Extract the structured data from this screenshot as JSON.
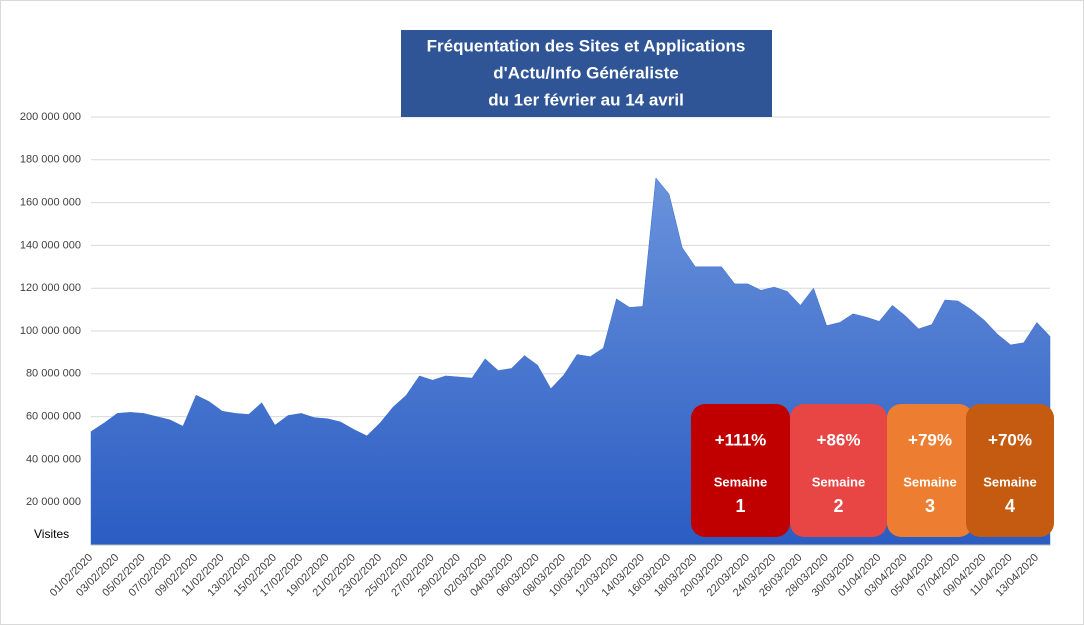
{
  "chart_data": {
    "type": "area",
    "title": [
      "Fréquentation des Sites et Applications",
      "d'Actu/Info Généraliste",
      "du 1er février au 14 avril"
    ],
    "y_label": "Visites",
    "categories": [
      "01/02/2020",
      null,
      "03/02/2020",
      null,
      "05/02/2020",
      null,
      "07/02/2020",
      null,
      "09/02/2020",
      null,
      "11/02/2020",
      null,
      "13/02/2020",
      null,
      "15/02/2020",
      null,
      "17/02/2020",
      null,
      "19/02/2020",
      null,
      "21/02/2020",
      null,
      "23/02/2020",
      null,
      "25/02/2020",
      null,
      "27/02/2020",
      null,
      "29/02/2020",
      null,
      "02/03/2020",
      null,
      "04/03/2020",
      null,
      "06/03/2020",
      null,
      "08/03/2020",
      null,
      "10/03/2020",
      null,
      "12/03/2020",
      null,
      "14/03/2020",
      null,
      "16/03/2020",
      null,
      "18/03/2020",
      null,
      "20/03/2020",
      null,
      "22/03/2020",
      null,
      "24/03/2020",
      null,
      "26/03/2020",
      null,
      "28/03/2020",
      null,
      "30/03/2020",
      null,
      "01/04/2020",
      null,
      "03/04/2020",
      null,
      "05/04/2020",
      null,
      "07/04/2020",
      null,
      "09/04/2020",
      null,
      "11/04/2020",
      null,
      "13/04/2020",
      null
    ],
    "values": [
      53000000,
      57000000,
      61500000,
      62000000,
      61500000,
      60000000,
      58500000,
      55500000,
      70000000,
      67000000,
      62500000,
      61500000,
      61000000,
      66500000,
      56000000,
      60500000,
      61500000,
      59500000,
      59000000,
      57500000,
      54000000,
      51000000,
      57000000,
      64500000,
      70000000,
      79000000,
      77000000,
      79000000,
      78500000,
      78000000,
      87000000,
      81500000,
      82500000,
      88500000,
      84000000,
      73000000,
      79500000,
      89000000,
      88000000,
      92000000,
      115000000,
      111000000,
      111500000,
      171500000,
      164000000,
      139000000,
      130000000,
      130000000,
      130000000,
      122000000,
      122000000,
      119000000,
      120500000,
      118500000,
      112000000,
      120000000,
      102500000,
      104000000,
      108000000,
      106500000,
      104500000,
      112000000,
      107000000,
      101000000,
      103000000,
      114500000,
      114000000,
      110000000,
      105000000,
      98500000,
      93500000,
      94500000,
      104000000,
      97500000
    ],
    "color": "#3a6bd0",
    "ylim": [
      0,
      200000000
    ],
    "yticks": [
      {
        "value": 20000000,
        "label": "20 000 000"
      },
      {
        "value": 40000000,
        "label": "40 000 000"
      },
      {
        "value": 60000000,
        "label": "60 000 000"
      },
      {
        "value": 80000000,
        "label": "80 000 000"
      },
      {
        "value": 100000000,
        "label": "100 000 000"
      },
      {
        "value": 120000000,
        "label": "120 000 000"
      },
      {
        "value": 140000000,
        "label": "140 000 000"
      },
      {
        "value": 160000000,
        "label": "160 000 000"
      },
      {
        "value": 180000000,
        "label": "180 000 000"
      },
      {
        "value": 200000000,
        "label": "200 000 000"
      }
    ],
    "grid": true,
    "annotations": [
      {
        "text": "+111%",
        "label": "Semaine",
        "number": "1",
        "color": "#c00000"
      },
      {
        "text": "+86%",
        "label": "Semaine",
        "number": "2",
        "color": "#e84545"
      },
      {
        "text": "+79%",
        "label": "Semaine",
        "number": "3",
        "color": "#ed7d31"
      },
      {
        "text": "+70%",
        "label": "Semaine",
        "number": "4",
        "color": "#c55a11"
      }
    ]
  }
}
